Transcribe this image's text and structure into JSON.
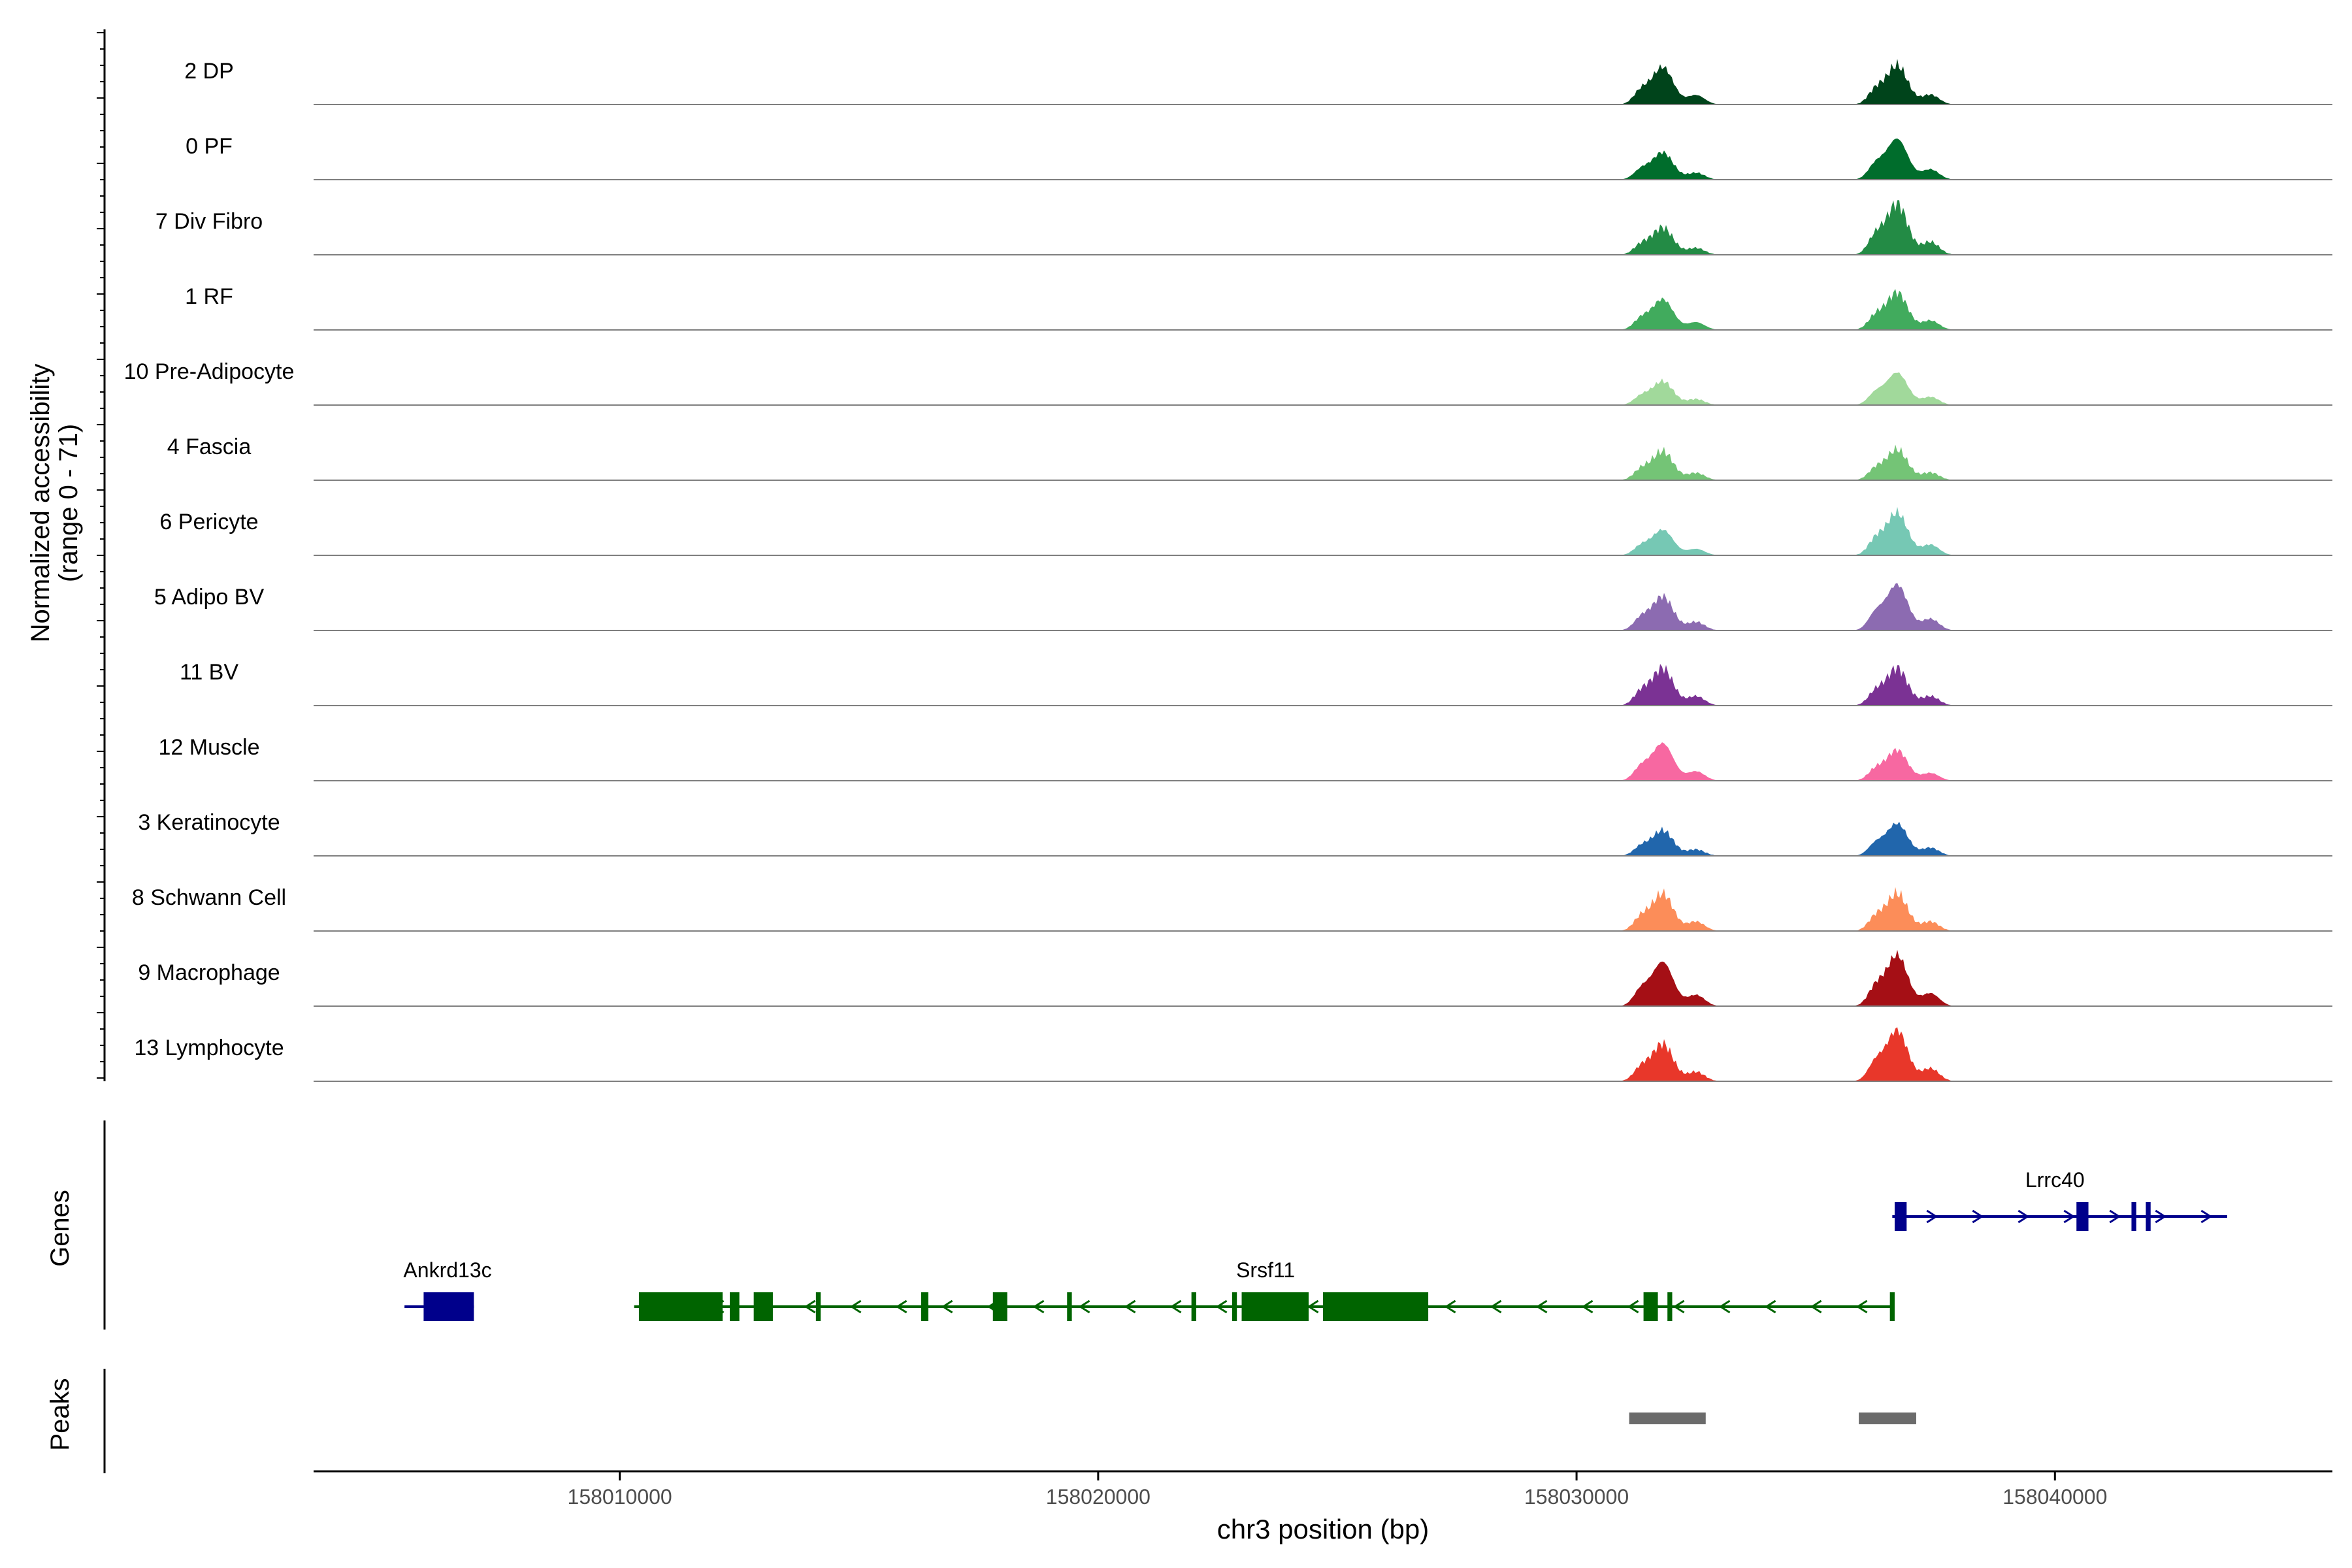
{
  "chart_data": {
    "type": "area",
    "title": "",
    "chromosome": "chr3",
    "xlabel": "chr3 position (bp)",
    "ylabel": [
      "Normalized accessibility",
      "(range 0 - 71)"
    ],
    "ylim": [
      0,
      71
    ],
    "xlim": [
      158003600,
      158045800
    ],
    "x_ticks": [
      158010000,
      158020000,
      158030000,
      158040000
    ],
    "x_tick_labels": [
      "158010000",
      "158020000",
      "158030000",
      "158040000"
    ],
    "panel_labels": {
      "genes": "Genes",
      "peaks": "Peaks"
    },
    "tracks": [
      {
        "name": "2 DP",
        "color": "#00441b",
        "peaks": [
          [
            158031800,
            44
          ],
          [
            158036700,
            46
          ]
        ]
      },
      {
        "name": "0 PF",
        "color": "#006d2c",
        "peaks": [
          [
            158031800,
            32
          ],
          [
            158036700,
            48
          ]
        ]
      },
      {
        "name": "7 Div Fibro",
        "color": "#238b45",
        "peaks": [
          [
            158031800,
            32
          ],
          [
            158036700,
            60
          ]
        ]
      },
      {
        "name": "1 RF",
        "color": "#41ab5d",
        "peaks": [
          [
            158031800,
            36
          ],
          [
            158036700,
            44
          ]
        ]
      },
      {
        "name": "10 Pre-Adipocyte",
        "color": "#a1d99b",
        "peaks": [
          [
            158031800,
            28
          ],
          [
            158036700,
            38
          ]
        ]
      },
      {
        "name": "4 Fascia",
        "color": "#74c476",
        "peaks": [
          [
            158031800,
            34
          ],
          [
            158036700,
            36
          ]
        ]
      },
      {
        "name": "6 Pericyte",
        "color": "#76c8b4",
        "peaks": [
          [
            158031800,
            30
          ],
          [
            158036700,
            50
          ]
        ]
      },
      {
        "name": "5 Adipo BV",
        "color": "#8c6bb1",
        "peaks": [
          [
            158031800,
            40
          ],
          [
            158036700,
            54
          ]
        ]
      },
      {
        "name": "11 BV",
        "color": "#7b3294",
        "peaks": [
          [
            158031800,
            44
          ],
          [
            158036700,
            44
          ]
        ]
      },
      {
        "name": "12 Muscle",
        "color": "#f768a1",
        "peaks": [
          [
            158031800,
            44
          ],
          [
            158036700,
            36
          ]
        ]
      },
      {
        "name": "3 Keratinocyte",
        "color": "#2166ac",
        "peaks": [
          [
            158031800,
            30
          ],
          [
            158036700,
            38
          ]
        ]
      },
      {
        "name": "8 Schwann Cell",
        "color": "#fc8d59",
        "peaks": [
          [
            158031800,
            44
          ],
          [
            158036700,
            44
          ]
        ]
      },
      {
        "name": "9 Macrophage",
        "color": "#a50f15",
        "peaks": [
          [
            158031800,
            52
          ],
          [
            158036700,
            60
          ]
        ]
      },
      {
        "name": "13 Lymphocyte",
        "color": "#e8372a",
        "peaks": [
          [
            158031800,
            44
          ],
          [
            158036700,
            60
          ]
        ]
      }
    ],
    "genes": [
      {
        "name": "Lrrc40",
        "strand": "+",
        "start": 158036600,
        "end": 158043600,
        "color": "#00008b",
        "exons": [
          [
            158036650,
            158036900
          ],
          [
            158040450,
            158040700
          ],
          [
            158041600,
            158041700
          ],
          [
            158041900,
            158042000
          ]
        ]
      },
      {
        "name": "Srsf11",
        "strand": "-",
        "start": 158010300,
        "end": 158036600,
        "color": "#006400",
        "exons": [
          [
            158010400,
            158012150
          ],
          [
            158012300,
            158012500
          ],
          [
            158012800,
            158013200
          ],
          [
            158014100,
            158014200
          ],
          [
            158016300,
            158016450
          ],
          [
            158017800,
            158018100
          ],
          [
            158019350,
            158019450
          ],
          [
            158021950,
            158022050
          ],
          [
            158022800,
            158022900
          ],
          [
            158023000,
            158024400
          ],
          [
            158024700,
            158026900
          ],
          [
            158031400,
            158031700
          ],
          [
            158031900,
            158032000
          ],
          [
            158036550,
            158036650
          ]
        ]
      },
      {
        "name": "Ankrd13c",
        "strand": "+",
        "start": 158005500,
        "end": 158006950,
        "color": "#00008b",
        "exons": [
          [
            158005900,
            158006950
          ]
        ]
      }
    ],
    "peak_regions": [
      [
        158031100,
        158032700
      ],
      [
        158035900,
        158037100
      ]
    ]
  }
}
